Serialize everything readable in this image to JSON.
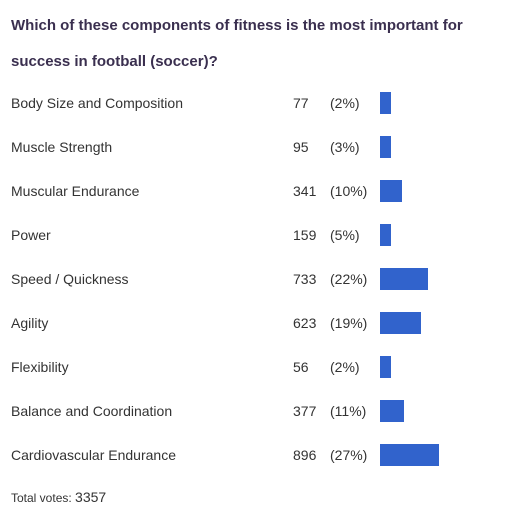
{
  "poll": {
    "question": "Which of these components of fitness is the most important for success in football (soccer)?",
    "bar_color": "#3163cc",
    "options": [
      {
        "label": "Body Size and Composition",
        "votes": "77",
        "percent": "(2%)",
        "share": 0.02
      },
      {
        "label": "Muscle Strength",
        "votes": "95",
        "percent": "(3%)",
        "share": 0.03
      },
      {
        "label": "Muscular Endurance",
        "votes": "341",
        "percent": "(10%)",
        "share": 0.1
      },
      {
        "label": "Power",
        "votes": "159",
        "percent": "(5%)",
        "share": 0.05
      },
      {
        "label": "Speed / Quickness",
        "votes": "733",
        "percent": "(22%)",
        "share": 0.22
      },
      {
        "label": "Agility",
        "votes": "623",
        "percent": "(19%)",
        "share": 0.19
      },
      {
        "label": "Flexibility",
        "votes": "56",
        "percent": "(2%)",
        "share": 0.02
      },
      {
        "label": "Balance and Coordination",
        "votes": "377",
        "percent": "(11%)",
        "share": 0.11
      },
      {
        "label": "Cardiovascular Endurance",
        "votes": "896",
        "percent": "(27%)",
        "share": 0.27
      }
    ],
    "total_label": "Total votes:",
    "total_votes": "3357"
  }
}
